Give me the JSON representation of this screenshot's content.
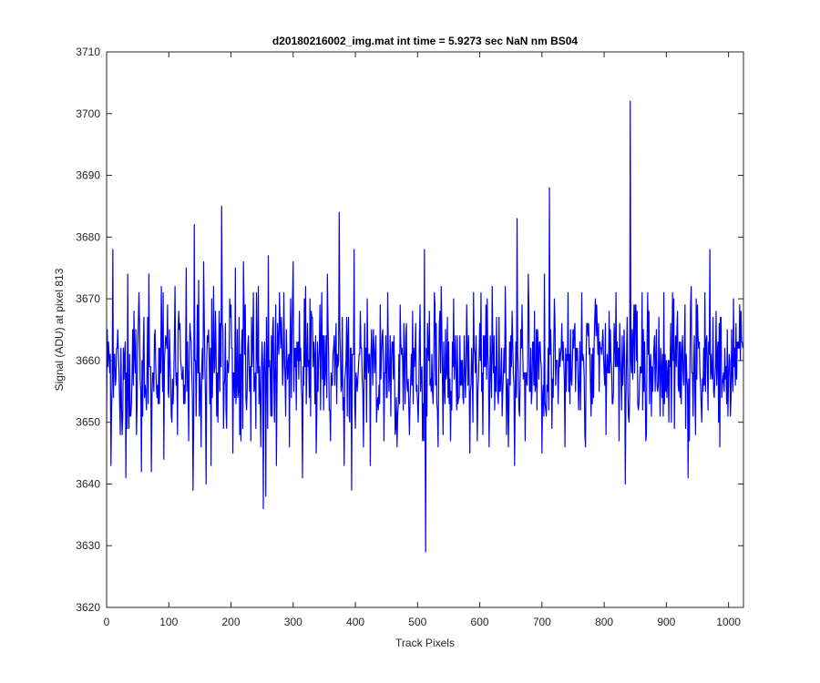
{
  "chart_data": {
    "type": "line",
    "title": "d20180216002_img.mat int time = 5.9273 sec  NaN nm BS04",
    "xlabel": "Track Pixels",
    "ylabel": "Signal (ADU) at pixel 813",
    "xlim": [
      0,
      1024
    ],
    "ylim": [
      3620,
      3710
    ],
    "xticks": [
      0,
      100,
      200,
      300,
      400,
      500,
      600,
      700,
      800,
      900,
      1000
    ],
    "yticks": [
      3620,
      3630,
      3640,
      3650,
      3660,
      3670,
      3680,
      3690,
      3700,
      3710
    ],
    "grid": false,
    "legend": "none",
    "series": [
      {
        "color": "#0000ff",
        "baseline": 3659,
        "sample_count": 1024,
        "points": [
          [
            0,
            3650
          ],
          [
            3,
            3663
          ],
          [
            7,
            3643
          ],
          [
            10,
            3678
          ],
          [
            14,
            3656
          ],
          [
            18,
            3665
          ],
          [
            22,
            3648
          ],
          [
            27,
            3662
          ],
          [
            31,
            3641
          ],
          [
            34,
            3674
          ],
          [
            38,
            3651
          ],
          [
            44,
            3668
          ],
          [
            48,
            3648
          ],
          [
            52,
            3671
          ],
          [
            56,
            3642
          ],
          [
            60,
            3667
          ],
          [
            64,
            3652
          ],
          [
            68,
            3674
          ],
          [
            72,
            3642
          ],
          [
            77,
            3664
          ],
          [
            82,
            3656
          ],
          [
            88,
            3672
          ],
          [
            92,
            3644
          ],
          [
            98,
            3669
          ],
          [
            104,
            3651
          ],
          [
            110,
            3672
          ],
          [
            114,
            3648
          ],
          [
            118,
            3666
          ],
          [
            124,
            3653
          ],
          [
            128,
            3675
          ],
          [
            132,
            3647
          ],
          [
            136,
            3663
          ],
          [
            139,
            3639
          ],
          [
            141,
            3682
          ],
          [
            144,
            3651
          ],
          [
            148,
            3673
          ],
          [
            152,
            3646
          ],
          [
            156,
            3676
          ],
          [
            160,
            3640
          ],
          [
            164,
            3665
          ],
          [
            168,
            3643
          ],
          [
            172,
            3672
          ],
          [
            177,
            3651
          ],
          [
            181,
            3668
          ],
          [
            185,
            3685
          ],
          [
            189,
            3656
          ],
          [
            193,
            3649
          ],
          [
            198,
            3670
          ],
          [
            203,
            3645
          ],
          [
            207,
            3675
          ],
          [
            212,
            3655
          ],
          [
            216,
            3647
          ],
          [
            220,
            3676
          ],
          [
            224,
            3654
          ],
          [
            228,
            3664
          ],
          [
            232,
            3647
          ],
          [
            236,
            3671
          ],
          [
            240,
            3649
          ],
          [
            244,
            3672
          ],
          [
            248,
            3646
          ],
          [
            252,
            3636
          ],
          [
            256,
            3638
          ],
          [
            260,
            3677
          ],
          [
            264,
            3651
          ],
          [
            268,
            3667
          ],
          [
            273,
            3643
          ],
          [
            278,
            3671
          ],
          [
            283,
            3656
          ],
          [
            289,
            3665
          ],
          [
            294,
            3646
          ],
          [
            300,
            3676
          ],
          [
            305,
            3652
          ],
          [
            310,
            3668
          ],
          [
            315,
            3641
          ],
          [
            320,
            3672
          ],
          [
            326,
            3654
          ],
          [
            331,
            3667
          ],
          [
            337,
            3645
          ],
          [
            343,
            3669
          ],
          [
            349,
            3652
          ],
          [
            355,
            3674
          ],
          [
            360,
            3647
          ],
          [
            366,
            3664
          ],
          [
            370,
            3653
          ],
          [
            374,
            3684
          ],
          [
            378,
            3656
          ],
          [
            382,
            3643
          ],
          [
            386,
            3667
          ],
          [
            391,
            3650
          ],
          [
            394,
            3639
          ],
          [
            398,
            3678
          ],
          [
            403,
            3655
          ],
          [
            408,
            3668
          ],
          [
            413,
            3646
          ],
          [
            419,
            3670
          ],
          [
            424,
            3643
          ],
          [
            430,
            3662
          ],
          [
            435,
            3653
          ],
          [
            440,
            3669
          ],
          [
            446,
            3647
          ],
          [
            452,
            3671
          ],
          [
            457,
            3651
          ],
          [
            462,
            3664
          ],
          [
            467,
            3646
          ],
          [
            472,
            3669
          ],
          [
            477,
            3652
          ],
          [
            482,
            3666
          ],
          [
            487,
            3648
          ],
          [
            492,
            3668
          ],
          [
            498,
            3655
          ],
          [
            503,
            3664
          ],
          [
            508,
            3647
          ],
          [
            511,
            3678
          ],
          [
            513,
            3629
          ],
          [
            517,
            3662
          ],
          [
            522,
            3655
          ],
          [
            528,
            3669
          ],
          [
            533,
            3646
          ],
          [
            538,
            3672
          ],
          [
            543,
            3656
          ],
          [
            548,
            3667
          ],
          [
            553,
            3647
          ],
          [
            558,
            3670
          ],
          [
            563,
            3652
          ],
          [
            568,
            3664
          ],
          [
            573,
            3654
          ],
          [
            579,
            3669
          ],
          [
            584,
            3645
          ],
          [
            590,
            3671
          ],
          [
            595,
            3657
          ],
          [
            600,
            3666
          ],
          [
            605,
            3648
          ],
          [
            610,
            3669
          ],
          [
            615,
            3646
          ],
          [
            620,
            3672
          ],
          [
            626,
            3655
          ],
          [
            631,
            3667
          ],
          [
            636,
            3651
          ],
          [
            641,
            3672
          ],
          [
            646,
            3646
          ],
          [
            652,
            3668
          ],
          [
            656,
            3643
          ],
          [
            660,
            3683
          ],
          [
            664,
            3651
          ],
          [
            668,
            3669
          ],
          [
            673,
            3647
          ],
          [
            678,
            3674
          ],
          [
            683,
            3653
          ],
          [
            688,
            3668
          ],
          [
            692,
            3652
          ],
          [
            696,
            3663
          ],
          [
            700,
            3645
          ],
          [
            704,
            3674
          ],
          [
            708,
            3656
          ],
          [
            712,
            3688
          ],
          [
            716,
            3649
          ],
          [
            720,
            3670
          ],
          [
            726,
            3653
          ],
          [
            732,
            3666
          ],
          [
            737,
            3646
          ],
          [
            742,
            3671
          ],
          [
            748,
            3656
          ],
          [
            753,
            3666
          ],
          [
            759,
            3652
          ],
          [
            764,
            3671
          ],
          [
            770,
            3646
          ],
          [
            775,
            3666
          ],
          [
            781,
            3653
          ],
          [
            786,
            3670
          ],
          [
            792,
            3655
          ],
          [
            797,
            3663
          ],
          [
            803,
            3648
          ],
          [
            808,
            3668
          ],
          [
            814,
            3653
          ],
          [
            819,
            3671
          ],
          [
            824,
            3647
          ],
          [
            829,
            3664
          ],
          [
            834,
            3640
          ],
          [
            838,
            3656
          ],
          [
            842,
            3702
          ],
          [
            846,
            3657
          ],
          [
            850,
            3669
          ],
          [
            855,
            3652
          ],
          [
            861,
            3671
          ],
          [
            867,
            3647
          ],
          [
            872,
            3668
          ],
          [
            878,
            3655
          ],
          [
            884,
            3665
          ],
          [
            890,
            3651
          ],
          [
            896,
            3671
          ],
          [
            901,
            3654
          ],
          [
            907,
            3666
          ],
          [
            913,
            3649
          ],
          [
            918,
            3668
          ],
          [
            924,
            3653
          ],
          [
            930,
            3669
          ],
          [
            935,
            3641
          ],
          [
            940,
            3672
          ],
          [
            946,
            3654
          ],
          [
            951,
            3664
          ],
          [
            957,
            3650
          ],
          [
            962,
            3671
          ],
          [
            967,
            3652
          ],
          [
            970,
            3678
          ],
          [
            974,
            3657
          ],
          [
            980,
            3668
          ],
          [
            986,
            3646
          ],
          [
            992,
            3658
          ],
          [
            998,
            3665
          ],
          [
            1003,
            3651
          ],
          [
            1008,
            3670
          ],
          [
            1013,
            3657
          ],
          [
            1018,
            3669
          ],
          [
            1022,
            3663
          ]
        ]
      }
    ]
  }
}
